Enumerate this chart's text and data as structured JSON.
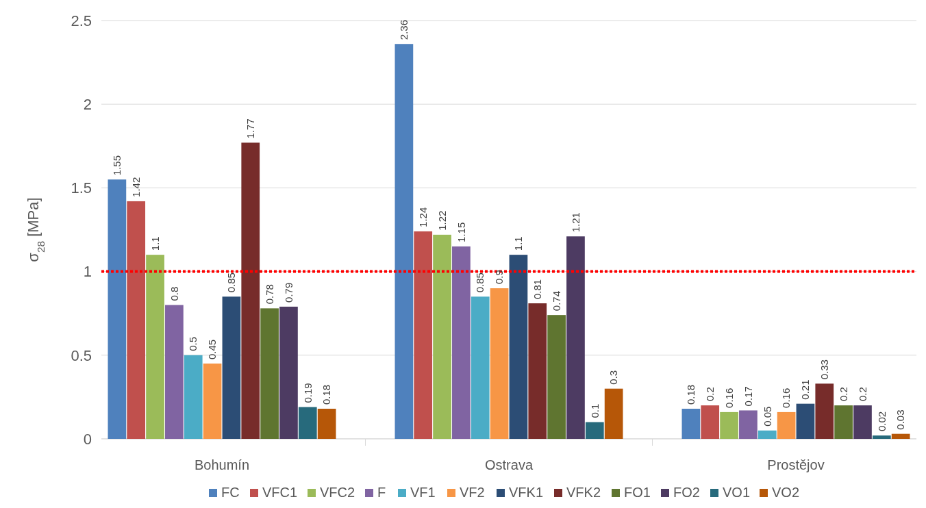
{
  "chart_data": {
    "type": "bar",
    "ylabel": "σ$_{28}$ [MPa]",
    "categories": [
      "Bohumín",
      "Ostrava",
      "Prostějov"
    ],
    "series": [
      {
        "name": "FC",
        "color": "#4f81bd",
        "values": [
          1.55,
          2.36,
          0.18
        ]
      },
      {
        "name": "VFC1",
        "color": "#c0504d",
        "values": [
          1.42,
          1.24,
          0.2
        ]
      },
      {
        "name": "VFC2",
        "color": "#9bbb59",
        "values": [
          1.1,
          1.22,
          0.16
        ]
      },
      {
        "name": "F",
        "color": "#8064a2",
        "values": [
          0.8,
          1.15,
          0.17
        ]
      },
      {
        "name": "VF1",
        "color": "#4bacc6",
        "values": [
          0.5,
          0.85,
          0.05
        ]
      },
      {
        "name": "VF2",
        "color": "#f79646",
        "values": [
          0.45,
          0.9,
          0.16
        ]
      },
      {
        "name": "VFK1",
        "color": "#2c4d75",
        "values": [
          0.85,
          1.1,
          0.21
        ]
      },
      {
        "name": "VFK2",
        "color": "#772c2a",
        "values": [
          1.77,
          0.81,
          0.33
        ]
      },
      {
        "name": "FO1",
        "color": "#5f7530",
        "values": [
          0.78,
          0.74,
          0.2
        ]
      },
      {
        "name": "FO2",
        "color": "#4d3b62",
        "values": [
          0.79,
          1.21,
          0.2
        ]
      },
      {
        "name": "VO1",
        "color": "#276a7c",
        "values": [
          0.19,
          0.1,
          0.02
        ]
      },
      {
        "name": "VO2",
        "color": "#b65708",
        "values": [
          0.18,
          0.3,
          0.03
        ]
      }
    ],
    "ylim": [
      0,
      2.5
    ],
    "yticks": [
      0,
      0.5,
      1,
      1.5,
      2,
      2.5
    ],
    "grid": "y",
    "legend": "bottom",
    "data_labels": true,
    "ref_lines": [
      {
        "axis": "y",
        "value": 1,
        "color": "#ff0000",
        "line_style": "dotted"
      }
    ]
  }
}
